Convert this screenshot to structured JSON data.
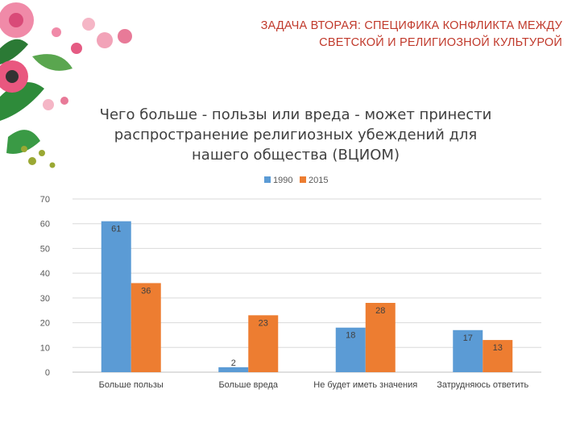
{
  "slide": {
    "title_line1": "ЗАДАЧА ВТОРАЯ: СПЕЦИФИКА КОНФЛИКТА МЕЖДУ",
    "title_line2": "СВЕТСКОЙ И РЕЛИГИОЗНОЙ КУЛЬТУРОЙ"
  },
  "chart_data": {
    "type": "bar",
    "title_lines": [
      "Чего больше - пользы или вреда - может принести",
      "распространение религиозных убеждений для",
      "нашего общества (ВЦИОМ)"
    ],
    "categories": [
      "Больше пользы",
      "Больше вреда",
      "Не будет иметь значения",
      "Затрудняюсь ответить"
    ],
    "series": [
      {
        "name": "1990",
        "values": [
          61,
          2,
          18,
          17
        ],
        "color": "#5b9bd5"
      },
      {
        "name": "2015",
        "values": [
          36,
          23,
          28,
          13
        ],
        "color": "#ed7d31"
      }
    ],
    "ylim": [
      0,
      70
    ],
    "yticks": [
      0,
      10,
      20,
      30,
      40,
      50,
      60,
      70
    ],
    "grid": true,
    "legend_position": "top-center",
    "data_labels": true
  }
}
